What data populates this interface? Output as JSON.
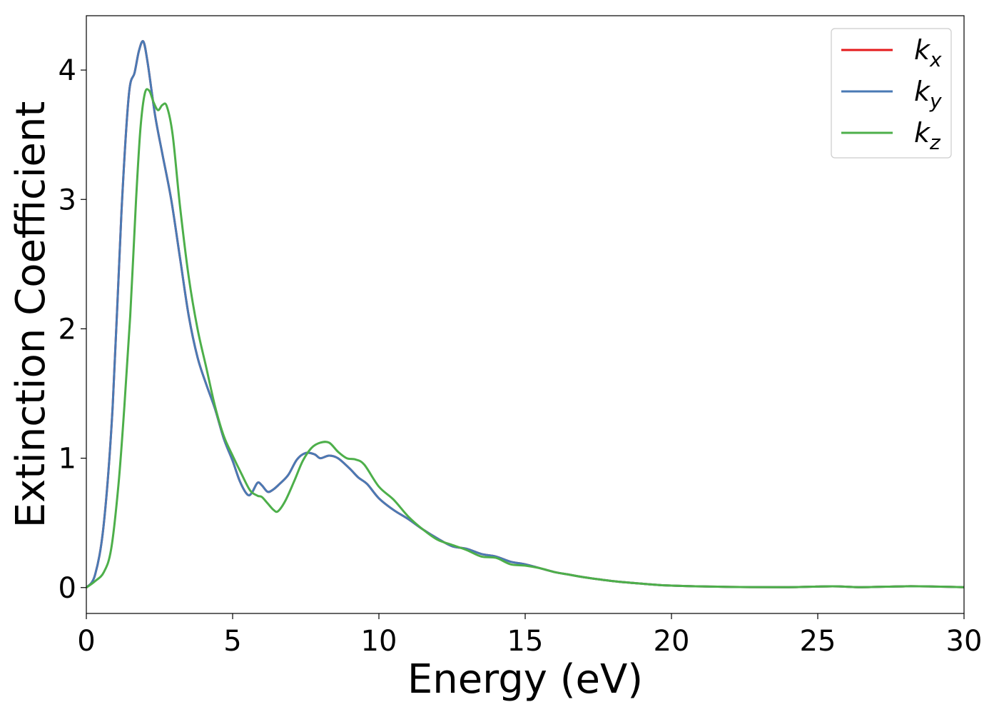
{
  "chart_data": {
    "type": "line",
    "xlabel": "Energy (eV)",
    "ylabel": "Extinction Coefficient",
    "xlim": [
      0,
      30
    ],
    "ylim": [
      -0.2,
      4.42
    ],
    "xticks": [
      0,
      5,
      10,
      15,
      20,
      25,
      30
    ],
    "yticks": [
      0,
      1,
      2,
      3,
      4
    ],
    "grid": false,
    "legend_position": "top-right",
    "series": [
      {
        "name": "k",
        "subscript": "x",
        "color": "#e41a1c",
        "points": [
          [
            0,
            0
          ],
          [
            0.3,
            0.1
          ],
          [
            0.6,
            0.5
          ],
          [
            0.9,
            1.4
          ],
          [
            1.2,
            2.9
          ],
          [
            1.45,
            3.8
          ],
          [
            1.65,
            3.98
          ],
          [
            1.8,
            4.15
          ],
          [
            1.95,
            4.22
          ],
          [
            2.1,
            4.05
          ],
          [
            2.35,
            3.65
          ],
          [
            2.6,
            3.35
          ],
          [
            2.9,
            3.0
          ],
          [
            3.2,
            2.55
          ],
          [
            3.5,
            2.1
          ],
          [
            3.8,
            1.78
          ],
          [
            4.1,
            1.57
          ],
          [
            4.4,
            1.38
          ],
          [
            4.7,
            1.15
          ],
          [
            5.0,
            0.98
          ],
          [
            5.25,
            0.82
          ],
          [
            5.5,
            0.72
          ],
          [
            5.65,
            0.73
          ],
          [
            5.85,
            0.81
          ],
          [
            6.0,
            0.79
          ],
          [
            6.2,
            0.74
          ],
          [
            6.4,
            0.76
          ],
          [
            6.6,
            0.8
          ],
          [
            6.9,
            0.87
          ],
          [
            7.2,
            0.99
          ],
          [
            7.5,
            1.04
          ],
          [
            7.8,
            1.03
          ],
          [
            8.0,
            1.0
          ],
          [
            8.3,
            1.02
          ],
          [
            8.6,
            1.0
          ],
          [
            9.0,
            0.92
          ],
          [
            9.3,
            0.85
          ],
          [
            9.6,
            0.8
          ],
          [
            10.0,
            0.69
          ],
          [
            10.5,
            0.6
          ],
          [
            11.0,
            0.53
          ],
          [
            11.5,
            0.45
          ],
          [
            12.0,
            0.38
          ],
          [
            12.5,
            0.32
          ],
          [
            13.0,
            0.3
          ],
          [
            13.5,
            0.26
          ],
          [
            14.0,
            0.24
          ],
          [
            14.5,
            0.2
          ],
          [
            15.0,
            0.18
          ],
          [
            15.5,
            0.15
          ],
          [
            16.0,
            0.12
          ],
          [
            16.5,
            0.1
          ],
          [
            17.0,
            0.08
          ],
          [
            18.0,
            0.05
          ],
          [
            19.0,
            0.03
          ],
          [
            20.0,
            0.015
          ],
          [
            22.0,
            0.005
          ],
          [
            24.0,
            0.003
          ],
          [
            25.5,
            0.01
          ],
          [
            26.5,
            0.003
          ],
          [
            28.0,
            0.01
          ],
          [
            29.0,
            0.008
          ],
          [
            30.0,
            0.003
          ]
        ]
      },
      {
        "name": "k",
        "subscript": "y",
        "color": "#4a7ab4",
        "points": [
          [
            0,
            0
          ],
          [
            0.3,
            0.1
          ],
          [
            0.6,
            0.5
          ],
          [
            0.9,
            1.4
          ],
          [
            1.2,
            2.9
          ],
          [
            1.45,
            3.8
          ],
          [
            1.65,
            3.98
          ],
          [
            1.8,
            4.15
          ],
          [
            1.95,
            4.22
          ],
          [
            2.1,
            4.05
          ],
          [
            2.35,
            3.65
          ],
          [
            2.6,
            3.35
          ],
          [
            2.9,
            3.0
          ],
          [
            3.2,
            2.55
          ],
          [
            3.5,
            2.1
          ],
          [
            3.8,
            1.78
          ],
          [
            4.1,
            1.57
          ],
          [
            4.4,
            1.38
          ],
          [
            4.7,
            1.15
          ],
          [
            5.0,
            0.98
          ],
          [
            5.25,
            0.82
          ],
          [
            5.5,
            0.72
          ],
          [
            5.65,
            0.73
          ],
          [
            5.85,
            0.81
          ],
          [
            6.0,
            0.79
          ],
          [
            6.2,
            0.74
          ],
          [
            6.4,
            0.76
          ],
          [
            6.6,
            0.8
          ],
          [
            6.9,
            0.87
          ],
          [
            7.2,
            0.99
          ],
          [
            7.5,
            1.04
          ],
          [
            7.8,
            1.03
          ],
          [
            8.0,
            1.0
          ],
          [
            8.3,
            1.02
          ],
          [
            8.6,
            1.0
          ],
          [
            9.0,
            0.92
          ],
          [
            9.3,
            0.85
          ],
          [
            9.6,
            0.8
          ],
          [
            10.0,
            0.69
          ],
          [
            10.5,
            0.6
          ],
          [
            11.0,
            0.53
          ],
          [
            11.5,
            0.45
          ],
          [
            12.0,
            0.38
          ],
          [
            12.5,
            0.32
          ],
          [
            13.0,
            0.3
          ],
          [
            13.5,
            0.26
          ],
          [
            14.0,
            0.24
          ],
          [
            14.5,
            0.2
          ],
          [
            15.0,
            0.18
          ],
          [
            15.5,
            0.15
          ],
          [
            16.0,
            0.12
          ],
          [
            16.5,
            0.1
          ],
          [
            17.0,
            0.08
          ],
          [
            18.0,
            0.05
          ],
          [
            19.0,
            0.03
          ],
          [
            20.0,
            0.015
          ],
          [
            22.0,
            0.005
          ],
          [
            24.0,
            0.003
          ],
          [
            25.5,
            0.01
          ],
          [
            26.5,
            0.003
          ],
          [
            28.0,
            0.01
          ],
          [
            29.0,
            0.008
          ],
          [
            30.0,
            0.003
          ]
        ]
      },
      {
        "name": "k",
        "subscript": "z",
        "color": "#4daf4a",
        "points": [
          [
            0,
            0
          ],
          [
            0.3,
            0.05
          ],
          [
            0.6,
            0.12
          ],
          [
            0.85,
            0.3
          ],
          [
            1.1,
            0.8
          ],
          [
            1.3,
            1.4
          ],
          [
            1.5,
            2.1
          ],
          [
            1.7,
            3.0
          ],
          [
            1.85,
            3.55
          ],
          [
            2.0,
            3.82
          ],
          [
            2.15,
            3.84
          ],
          [
            2.3,
            3.75
          ],
          [
            2.45,
            3.69
          ],
          [
            2.6,
            3.73
          ],
          [
            2.75,
            3.72
          ],
          [
            2.95,
            3.5
          ],
          [
            3.2,
            2.95
          ],
          [
            3.5,
            2.4
          ],
          [
            3.8,
            2.0
          ],
          [
            4.1,
            1.7
          ],
          [
            4.4,
            1.4
          ],
          [
            4.7,
            1.17
          ],
          [
            5.0,
            1.02
          ],
          [
            5.3,
            0.88
          ],
          [
            5.6,
            0.75
          ],
          [
            5.85,
            0.71
          ],
          [
            6.0,
            0.7
          ],
          [
            6.2,
            0.65
          ],
          [
            6.4,
            0.6
          ],
          [
            6.55,
            0.59
          ],
          [
            6.8,
            0.67
          ],
          [
            7.1,
            0.82
          ],
          [
            7.4,
            0.98
          ],
          [
            7.7,
            1.08
          ],
          [
            8.0,
            1.12
          ],
          [
            8.3,
            1.12
          ],
          [
            8.6,
            1.05
          ],
          [
            8.9,
            1.0
          ],
          [
            9.2,
            0.99
          ],
          [
            9.5,
            0.95
          ],
          [
            10.0,
            0.78
          ],
          [
            10.5,
            0.68
          ],
          [
            11.0,
            0.55
          ],
          [
            11.5,
            0.45
          ],
          [
            12.0,
            0.37
          ],
          [
            12.5,
            0.33
          ],
          [
            13.0,
            0.29
          ],
          [
            13.5,
            0.24
          ],
          [
            14.0,
            0.23
          ],
          [
            14.5,
            0.18
          ],
          [
            15.0,
            0.17
          ],
          [
            15.5,
            0.15
          ],
          [
            16.0,
            0.12
          ],
          [
            16.5,
            0.1
          ],
          [
            17.0,
            0.08
          ],
          [
            18.0,
            0.05
          ],
          [
            19.0,
            0.03
          ],
          [
            20.0,
            0.015
          ],
          [
            22.0,
            0.005
          ],
          [
            24.0,
            0.003
          ],
          [
            25.5,
            0.01
          ],
          [
            26.5,
            0.003
          ],
          [
            28.0,
            0.01
          ],
          [
            29.0,
            0.008
          ],
          [
            30.0,
            0.003
          ]
        ]
      }
    ]
  }
}
